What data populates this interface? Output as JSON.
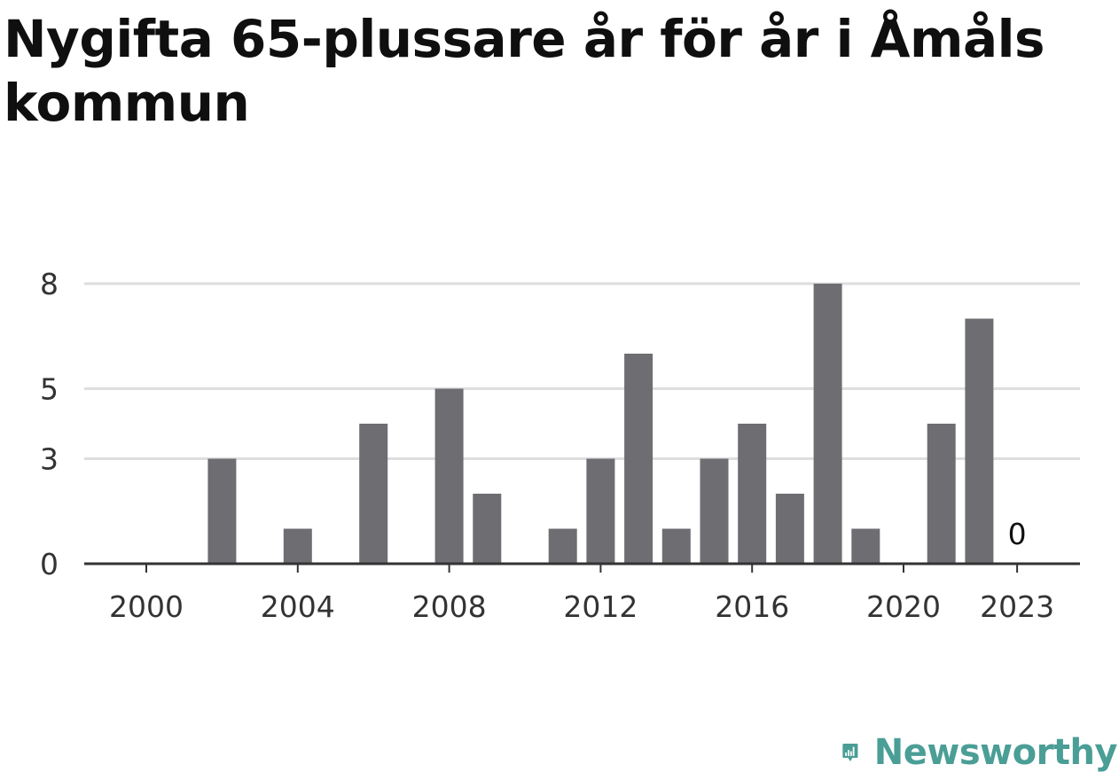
{
  "title": "Nygifta 65-plussare år för år i Åmåls kommun",
  "chart_data": {
    "type": "bar",
    "x": [
      2000,
      2001,
      2002,
      2003,
      2004,
      2005,
      2006,
      2007,
      2008,
      2009,
      2010,
      2011,
      2012,
      2013,
      2014,
      2015,
      2016,
      2017,
      2018,
      2019,
      2020,
      2021,
      2022,
      2023
    ],
    "values": [
      0,
      0,
      3,
      0,
      1,
      0,
      4,
      0,
      5,
      2,
      0,
      1,
      3,
      6,
      1,
      3,
      4,
      2,
      8,
      1,
      0,
      4,
      7,
      0
    ],
    "x_ticks": [
      "2000",
      "2004",
      "2008",
      "2012",
      "2016",
      "2020",
      "2023"
    ],
    "y_ticks": [
      "0",
      "3",
      "5",
      "8"
    ],
    "ylim": [
      0,
      8
    ],
    "annotations": [
      {
        "x": 2023,
        "text": "0"
      }
    ],
    "bar_color": "#6e6d72",
    "grid": true,
    "grid_color": "#dedede"
  },
  "logo": {
    "text": "Newsworthy",
    "icon": "newsworthy-bar-chart-icon",
    "color": "#4a9e96"
  }
}
